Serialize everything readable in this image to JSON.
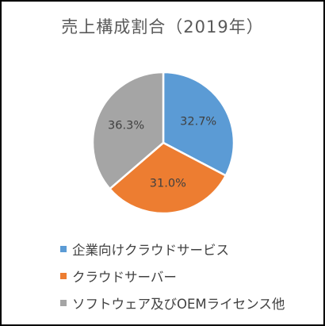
{
  "chart_data": {
    "type": "pie",
    "title": "売上構成割合（2019年）",
    "categories": [
      "企業向けクラウドサービス",
      "クラウドサーバー",
      "ソフトウェア及びOEMライセンス他"
    ],
    "values": [
      32.7,
      31.0,
      36.3
    ],
    "value_labels": [
      "32.7%",
      "31.0%",
      "36.3%"
    ],
    "colors": [
      "#5b9bd5",
      "#ed7d31",
      "#a5a5a5"
    ],
    "legend_position": "bottom",
    "start_angle": "12 o'clock, clockwise"
  }
}
